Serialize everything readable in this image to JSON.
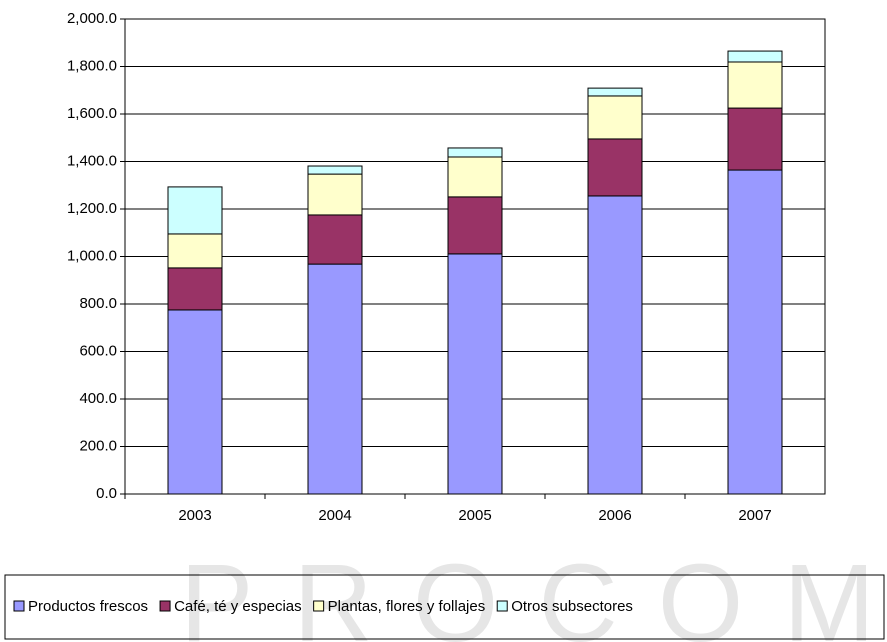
{
  "chart_data": {
    "type": "stacked-bar",
    "watermark": "PROCOMER",
    "categories": [
      "2003",
      "2004",
      "2005",
      "2006",
      "2007"
    ],
    "series": [
      {
        "name": "Productos frescos",
        "color": "#9999ff",
        "values": [
          775,
          968,
          1011,
          1255,
          1364
        ]
      },
      {
        "name": "Café, té y especias",
        "color": "#993366",
        "values": [
          177,
          207,
          240,
          240,
          261
        ]
      },
      {
        "name": "Plantas, flores y follajes",
        "color": "#ffffcc",
        "values": [
          143,
          172,
          168,
          181,
          194
        ]
      },
      {
        "name": "Otros subsectores",
        "color": "#ccffff",
        "values": [
          198,
          34,
          38,
          33,
          46
        ]
      }
    ],
    "ylim": [
      0,
      2000
    ],
    "yticks": [
      {
        "value": 0,
        "label": "0.0"
      },
      {
        "value": 200,
        "label": "200.0"
      },
      {
        "value": 400,
        "label": "400.0"
      },
      {
        "value": 600,
        "label": "600.0"
      },
      {
        "value": 800,
        "label": "800.0"
      },
      {
        "value": 1000,
        "label": "1,000.0"
      },
      {
        "value": 1200,
        "label": "1,200.0"
      },
      {
        "value": 1400,
        "label": "1,400.0"
      },
      {
        "value": 1600,
        "label": "1,600.0"
      },
      {
        "value": 1800,
        "label": "1,800.0"
      },
      {
        "value": 2000,
        "label": "2,000.0"
      }
    ],
    "grid": true
  }
}
